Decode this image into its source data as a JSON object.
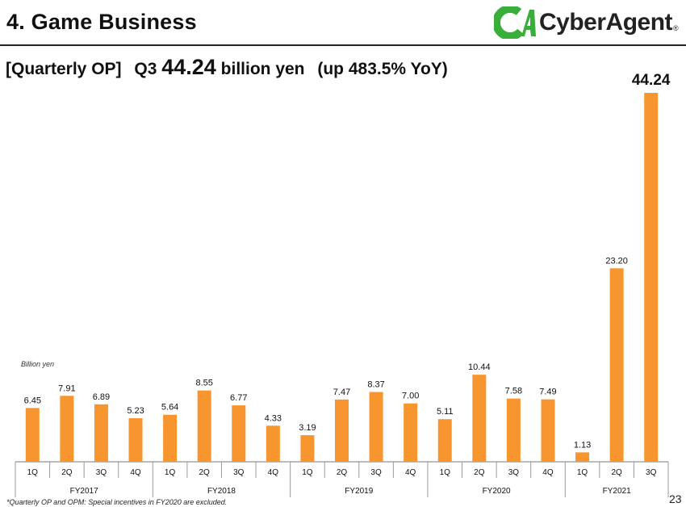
{
  "slide": {
    "title": "4. Game Business",
    "logo_text": "CyberAgent",
    "logo_mark": "CA",
    "logo_reg": "®",
    "subtitle_bracket": "[Quarterly OP]",
    "subtitle_q": "Q3",
    "subtitle_value": "44.24",
    "subtitle_unit": "billion yen",
    "subtitle_change": "(up 483.5% YoY)",
    "unit_label": "Billion yen",
    "footnote": "*Quarterly OP and OPM: Special incentives in FY2020 are excluded.",
    "page_number": "23"
  },
  "chart_data": {
    "type": "bar",
    "title": "",
    "xlabel": "",
    "ylabel": "Billion yen",
    "bar_color": "#F7962E",
    "groups": [
      {
        "label": "FY2017",
        "quarters": [
          "1Q",
          "2Q",
          "3Q",
          "4Q"
        ]
      },
      {
        "label": "FY2018",
        "quarters": [
          "1Q",
          "2Q",
          "3Q",
          "4Q"
        ]
      },
      {
        "label": "FY2019",
        "quarters": [
          "1Q",
          "2Q",
          "3Q",
          "4Q"
        ]
      },
      {
        "label": "FY2020",
        "quarters": [
          "1Q",
          "2Q",
          "3Q",
          "4Q"
        ]
      },
      {
        "label": "FY2021",
        "quarters": [
          "1Q",
          "2Q",
          "3Q"
        ]
      }
    ],
    "values": [
      6.45,
      7.91,
      6.89,
      5.23,
      5.64,
      8.55,
      6.77,
      4.33,
      3.19,
      7.47,
      8.37,
      7.0,
      5.11,
      10.44,
      7.58,
      7.49,
      1.13,
      23.2,
      44.24
    ],
    "value_labels": [
      "6.45",
      "7.91",
      "6.89",
      "5.23",
      "5.64",
      "8.55",
      "6.77",
      "4.33",
      "3.19",
      "7.47",
      "8.37",
      "7.00",
      "5.11",
      "10.44",
      "7.58",
      "7.49",
      "1.13",
      "23.20",
      "44.24"
    ],
    "ylim": [
      0,
      44.24
    ],
    "grid": false,
    "legend": "none"
  }
}
